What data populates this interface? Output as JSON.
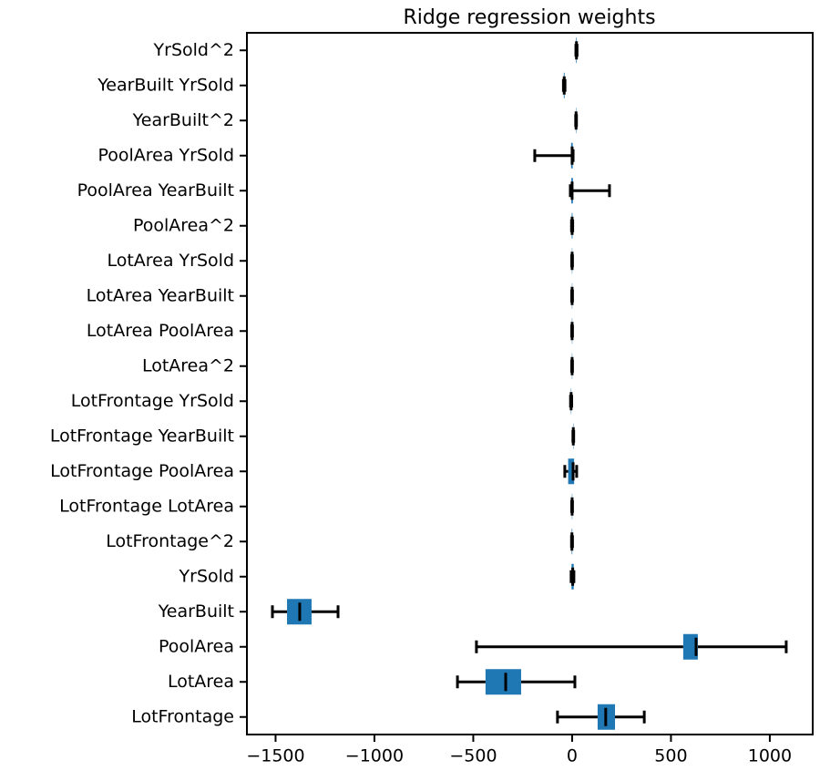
{
  "chart_data": {
    "type": "boxplot",
    "orientation": "horizontal",
    "title": "Ridge regression weights",
    "categories": [
      "LotFrontage",
      "LotArea",
      "PoolArea",
      "YearBuilt",
      "YrSold",
      "LotFrontage^2",
      "LotFrontage LotArea",
      "LotFrontage PoolArea",
      "LotFrontage YearBuilt",
      "LotFrontage YrSold",
      "LotArea^2",
      "LotArea PoolArea",
      "LotArea YearBuilt",
      "LotArea YrSold",
      "PoolArea^2",
      "PoolArea YearBuilt",
      "PoolArea YrSold",
      "YearBuilt^2",
      "YearBuilt YrSold",
      "YrSold^2"
    ],
    "whisker_low": [
      -74,
      -580,
      -484,
      -1516,
      -5,
      -3,
      -2,
      -37,
      4,
      -8,
      -2,
      -2,
      -2,
      -2,
      -3,
      -9,
      -189,
      18,
      -44,
      19
    ],
    "q1": [
      129,
      -438,
      562,
      -1442,
      -3,
      -2,
      -1,
      -20,
      5,
      -6,
      -1,
      -1,
      -1,
      -1,
      -2,
      -4,
      -5,
      19,
      -42,
      20
    ],
    "median": [
      170,
      -336,
      627,
      -1378,
      3,
      -1,
      0,
      5,
      6,
      -5,
      0,
      0,
      0,
      0,
      0,
      0,
      0,
      20,
      -40,
      22
    ],
    "q3": [
      217,
      -258,
      636,
      -1318,
      8,
      1,
      1,
      10,
      7,
      -4,
      1,
      1,
      1,
      1,
      2,
      4,
      3,
      21,
      -38,
      23
    ],
    "whisker_high": [
      365,
      14,
      1083,
      -1184,
      9,
      2,
      2,
      23,
      8,
      -2,
      2,
      2,
      2,
      2,
      3,
      189,
      5,
      22,
      -36,
      25
    ],
    "color": "#1f77b4",
    "xlim": [
      -1645,
      1217
    ],
    "xticks": [
      {
        "value": -1500,
        "label": "−1500"
      },
      {
        "value": -1000,
        "label": "−1000"
      },
      {
        "value": -500,
        "label": "−500"
      },
      0,
      500,
      1000
    ]
  }
}
